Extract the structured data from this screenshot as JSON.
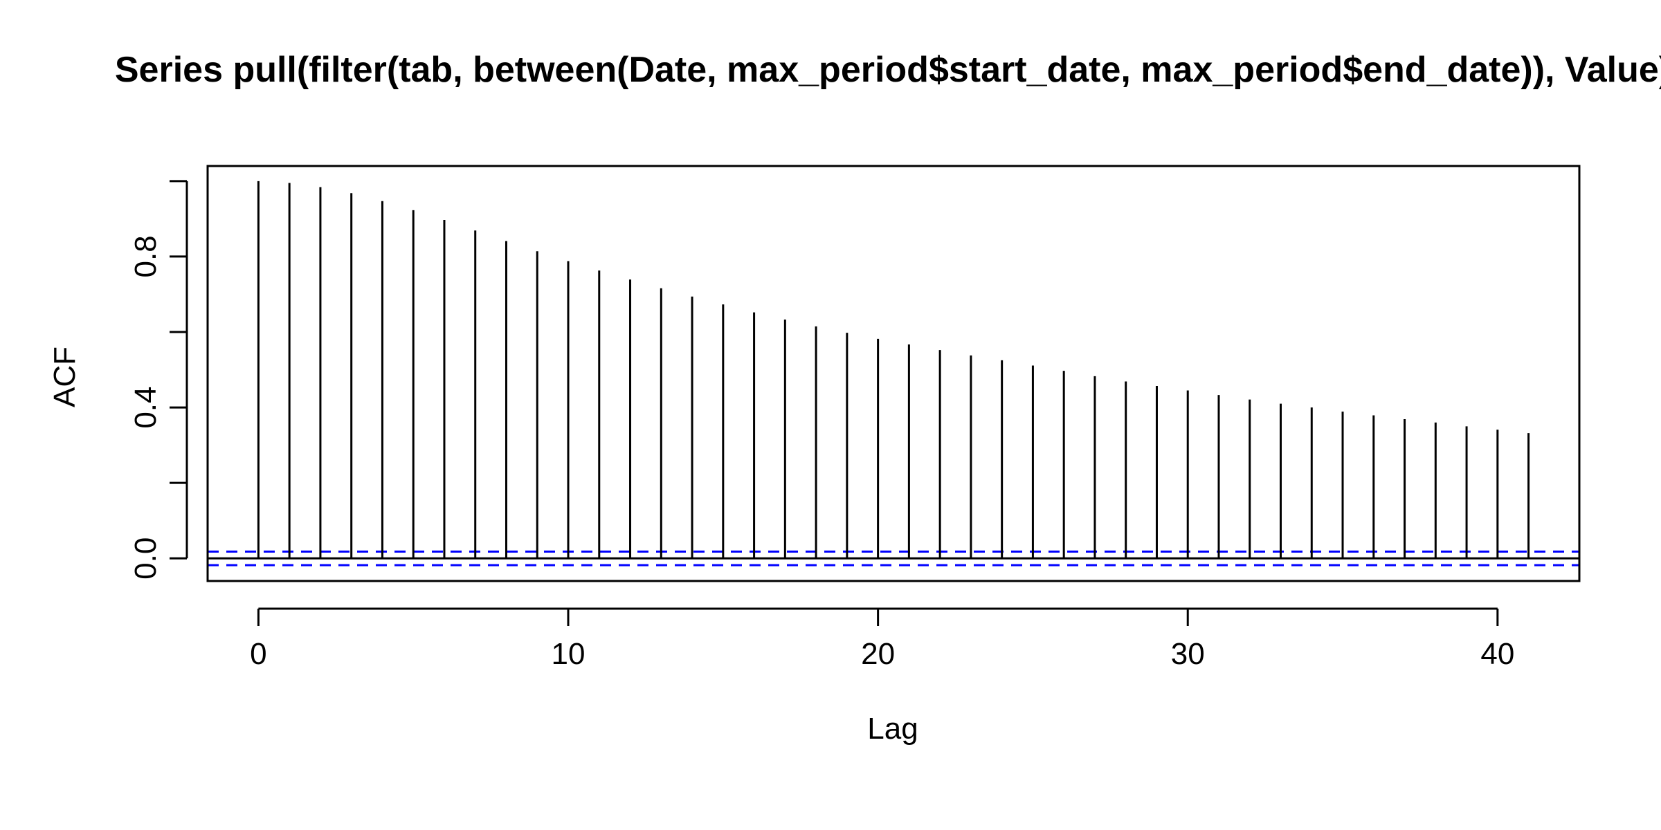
{
  "chart_data": {
    "type": "bar",
    "title": "Series  pull(filter(tab, between(Date, max_period$start_date, max_period$end_date)), Value)",
    "xlabel": "Lag",
    "ylabel": "ACF",
    "xlim": [
      -1.64,
      42.64
    ],
    "ylim": [
      -0.06,
      1.04
    ],
    "x_ticks": [
      0,
      10,
      20,
      30,
      40
    ],
    "x_tick_labels": [
      "0",
      "10",
      "20",
      "30",
      "40"
    ],
    "y_ticks": [
      0.0,
      0.2,
      0.4,
      0.6,
      0.8,
      1.0
    ],
    "y_tick_labels": [
      "0.0",
      "",
      "0.4",
      "",
      "0.8",
      ""
    ],
    "lags": [
      0,
      1,
      2,
      3,
      4,
      5,
      6,
      7,
      8,
      9,
      10,
      11,
      12,
      13,
      14,
      15,
      16,
      17,
      18,
      19,
      20,
      21,
      22,
      23,
      24,
      25,
      26,
      27,
      28,
      29,
      30,
      31,
      32,
      33,
      34,
      35,
      36,
      37,
      38,
      39,
      40,
      41
    ],
    "acf": [
      1.0,
      0.995,
      0.984,
      0.968,
      0.947,
      0.923,
      0.897,
      0.869,
      0.841,
      0.814,
      0.788,
      0.763,
      0.739,
      0.716,
      0.694,
      0.673,
      0.652,
      0.633,
      0.615,
      0.598,
      0.582,
      0.567,
      0.552,
      0.538,
      0.525,
      0.511,
      0.497,
      0.483,
      0.469,
      0.457,
      0.445,
      0.433,
      0.421,
      0.41,
      0.4,
      0.389,
      0.379,
      0.369,
      0.36,
      0.35,
      0.341,
      0.332
    ],
    "confidence_bound": 0.018,
    "zero_line": true,
    "bar_color": "#000000",
    "ci_color": "#0000FF",
    "grid": false,
    "legend": "none"
  }
}
